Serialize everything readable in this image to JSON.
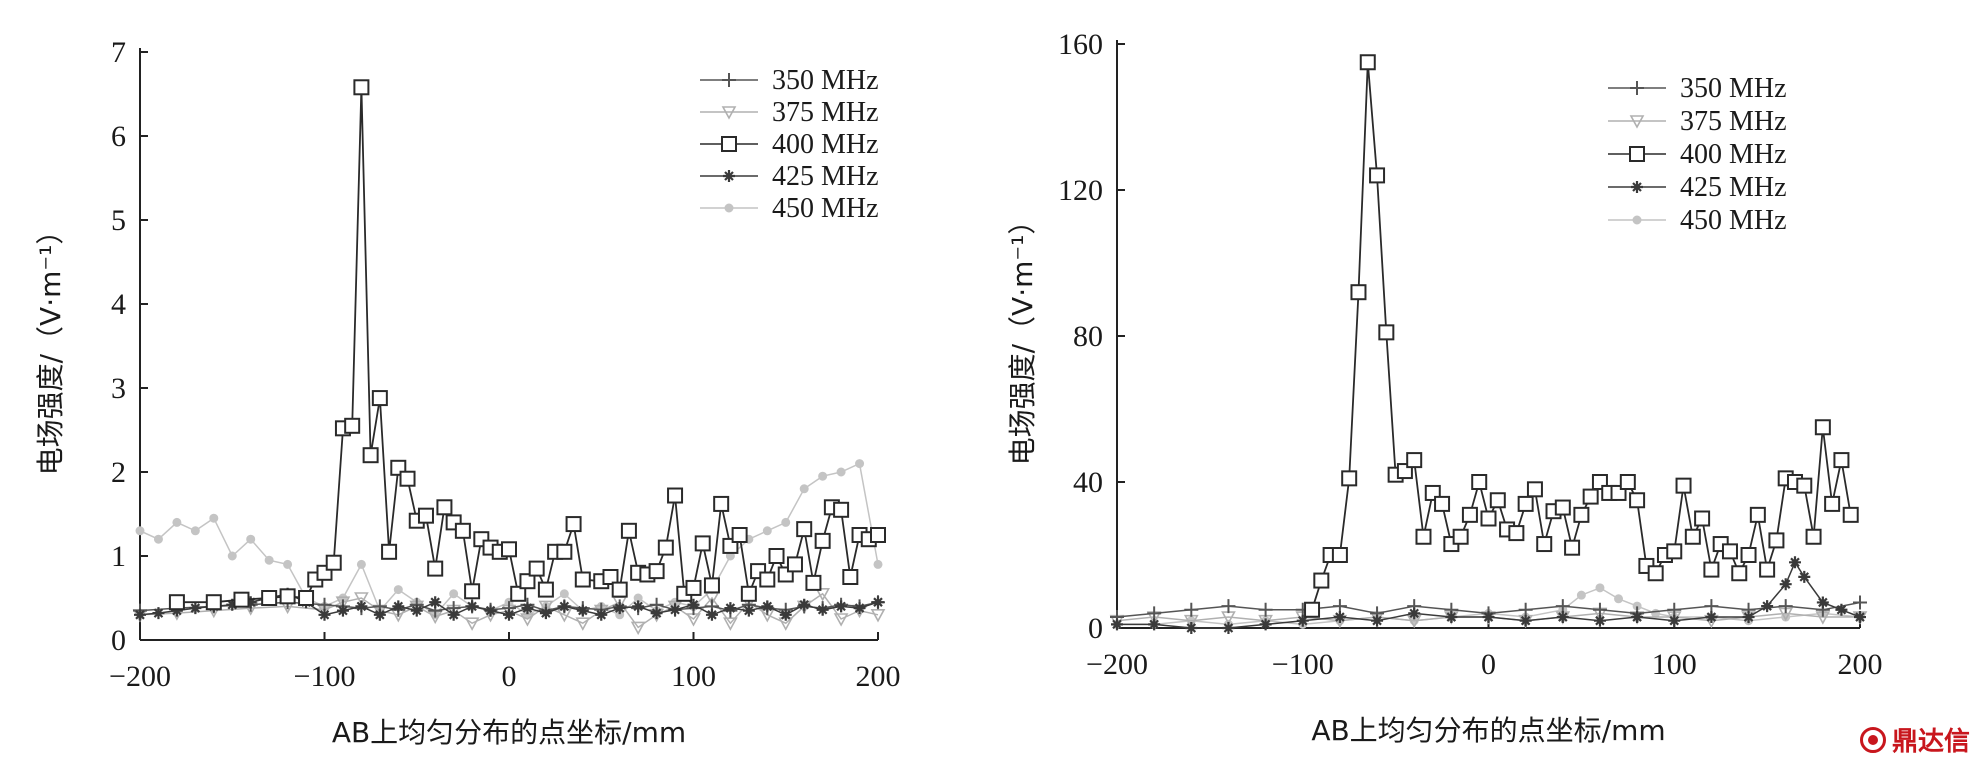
{
  "chart_data": [
    {
      "type": "line",
      "xlabel": "AB上均匀分布的点坐标/mm",
      "ylabel": "电场强度/（V·m⁻¹）",
      "xlim": [
        -200,
        200
      ],
      "ylim": [
        0,
        7
      ],
      "xticks": [
        -200,
        -100,
        0,
        100,
        200
      ],
      "yticks": [
        0,
        1,
        2,
        3,
        4,
        5,
        6,
        7
      ],
      "grid": false,
      "legend_position": "top-right",
      "series": [
        {
          "name": "350 MHz",
          "marker": "plus",
          "color": "#555555",
          "x": [
            -200,
            -180,
            -160,
            -140,
            -120,
            -100,
            -90,
            -80,
            -70,
            -60,
            -50,
            -40,
            -30,
            -20,
            -10,
            0,
            10,
            20,
            30,
            40,
            50,
            60,
            70,
            80,
            90,
            100,
            110,
            120,
            130,
            140,
            150,
            160,
            170,
            180,
            190,
            200
          ],
          "y": [
            0.35,
            0.38,
            0.4,
            0.42,
            0.45,
            0.42,
            0.4,
            0.38,
            0.4,
            0.36,
            0.42,
            0.35,
            0.38,
            0.4,
            0.36,
            0.38,
            0.42,
            0.35,
            0.4,
            0.38,
            0.36,
            0.4,
            0.38,
            0.42,
            0.36,
            0.38,
            0.4,
            0.35,
            0.42,
            0.38,
            0.36,
            0.4,
            0.38,
            0.42,
            0.4,
            0.45
          ]
        },
        {
          "name": "375 MHz",
          "marker": "triangle-down",
          "color": "#b0b0b0",
          "x": [
            -200,
            -180,
            -160,
            -140,
            -120,
            -100,
            -90,
            -80,
            -70,
            -60,
            -50,
            -40,
            -30,
            -20,
            -10,
            0,
            10,
            20,
            30,
            40,
            50,
            60,
            70,
            80,
            90,
            100,
            110,
            120,
            130,
            140,
            150,
            160,
            170,
            180,
            190,
            200
          ],
          "y": [
            0.3,
            0.32,
            0.35,
            0.38,
            0.4,
            0.36,
            0.45,
            0.5,
            0.35,
            0.3,
            0.4,
            0.28,
            0.35,
            0.2,
            0.3,
            0.35,
            0.25,
            0.4,
            0.3,
            0.2,
            0.35,
            0.45,
            0.15,
            0.3,
            0.4,
            0.25,
            0.5,
            0.2,
            0.45,
            0.3,
            0.2,
            0.4,
            0.55,
            0.25,
            0.35,
            0.3
          ]
        },
        {
          "name": "400 MHz",
          "marker": "square",
          "color": "#2a2a2a",
          "x": [
            -180,
            -160,
            -145,
            -130,
            -120,
            -110,
            -105,
            -100,
            -95,
            -90,
            -85,
            -80,
            -75,
            -70,
            -65,
            -60,
            -55,
            -50,
            -45,
            -40,
            -35,
            -30,
            -25,
            -20,
            -15,
            -10,
            -5,
            0,
            5,
            10,
            15,
            20,
            25,
            30,
            35,
            40,
            50,
            55,
            60,
            65,
            70,
            75,
            80,
            85,
            90,
            95,
            100,
            105,
            110,
            115,
            120,
            125,
            130,
            135,
            140,
            145,
            150,
            155,
            160,
            165,
            170,
            175,
            180,
            185,
            190,
            195,
            200
          ],
          "y": [
            0.45,
            0.45,
            0.48,
            0.5,
            0.52,
            0.5,
            0.72,
            0.8,
            0.92,
            2.52,
            2.55,
            6.58,
            2.2,
            2.88,
            1.05,
            2.05,
            1.92,
            1.42,
            1.48,
            0.85,
            1.58,
            1.4,
            1.3,
            0.58,
            1.2,
            1.1,
            1.05,
            1.08,
            0.55,
            0.7,
            0.85,
            0.6,
            1.05,
            1.05,
            1.38,
            0.72,
            0.7,
            0.75,
            0.6,
            1.3,
            0.8,
            0.78,
            0.82,
            1.1,
            1.72,
            0.55,
            0.62,
            1.15,
            0.65,
            1.62,
            1.12,
            1.25,
            0.55,
            0.82,
            0.72,
            1.0,
            0.78,
            0.9,
            1.32,
            0.68,
            1.18,
            1.58,
            1.55,
            0.75,
            1.25,
            1.2,
            1.25
          ]
        },
        {
          "name": "425 MHz",
          "marker": "star",
          "color": "#3a3a3a",
          "x": [
            -200,
            -190,
            -180,
            -170,
            -160,
            -150,
            -140,
            -130,
            -120,
            -110,
            -100,
            -90,
            -80,
            -70,
            -60,
            -50,
            -40,
            -30,
            -20,
            -10,
            0,
            10,
            20,
            30,
            40,
            50,
            60,
            70,
            80,
            90,
            100,
            110,
            120,
            130,
            140,
            150,
            160,
            170,
            180,
            190,
            200
          ],
          "y": [
            0.3,
            0.32,
            0.35,
            0.38,
            0.4,
            0.42,
            0.45,
            0.5,
            0.55,
            0.45,
            0.3,
            0.35,
            0.4,
            0.3,
            0.4,
            0.35,
            0.45,
            0.3,
            0.4,
            0.35,
            0.3,
            0.38,
            0.32,
            0.4,
            0.35,
            0.3,
            0.38,
            0.4,
            0.32,
            0.36,
            0.42,
            0.3,
            0.38,
            0.35,
            0.4,
            0.3,
            0.42,
            0.36,
            0.4,
            0.38,
            0.45
          ]
        },
        {
          "name": "450 MHz",
          "marker": "circle",
          "color": "#c4c4c4",
          "x": [
            -200,
            -190,
            -180,
            -170,
            -160,
            -150,
            -140,
            -130,
            -120,
            -110,
            -100,
            -90,
            -80,
            -70,
            -60,
            -50,
            -40,
            -30,
            -20,
            -10,
            0,
            10,
            20,
            30,
            40,
            50,
            60,
            70,
            80,
            90,
            100,
            110,
            120,
            130,
            140,
            150,
            160,
            170,
            180,
            190,
            200
          ],
          "y": [
            1.3,
            1.2,
            1.4,
            1.3,
            1.45,
            1.0,
            1.2,
            0.95,
            0.9,
            0.5,
            0.4,
            0.5,
            0.9,
            0.35,
            0.6,
            0.45,
            0.3,
            0.55,
            0.4,
            0.35,
            0.45,
            0.3,
            0.4,
            0.55,
            0.35,
            0.4,
            0.3,
            0.5,
            0.35,
            0.45,
            0.4,
            0.6,
            1.0,
            1.2,
            1.3,
            1.4,
            1.8,
            1.95,
            2.0,
            2.1,
            0.9
          ]
        }
      ]
    },
    {
      "type": "line",
      "xlabel": "AB上均匀分布的点坐标/mm",
      "ylabel": "电场强度/（V·m⁻¹）",
      "xlim": [
        -200,
        200
      ],
      "ylim": [
        0,
        160
      ],
      "xticks": [
        -200,
        -100,
        0,
        100,
        200
      ],
      "yticks": [
        0,
        40,
        80,
        120,
        160
      ],
      "grid": false,
      "legend_position": "top-right",
      "series": [
        {
          "name": "350 MHz",
          "marker": "plus",
          "color": "#555555",
          "x": [
            -200,
            -180,
            -160,
            -140,
            -120,
            -100,
            -80,
            -60,
            -40,
            -20,
            0,
            20,
            40,
            60,
            80,
            100,
            120,
            140,
            160,
            180,
            200
          ],
          "y": [
            3,
            4,
            5,
            6,
            5,
            5,
            6,
            4,
            6,
            5,
            4,
            5,
            6,
            5,
            4,
            5,
            6,
            5,
            6,
            5,
            7
          ]
        },
        {
          "name": "375 MHz",
          "marker": "triangle-down",
          "color": "#b0b0b0",
          "x": [
            -200,
            -180,
            -160,
            -140,
            -120,
            -100,
            -80,
            -60,
            -40,
            -20,
            0,
            20,
            40,
            60,
            80,
            100,
            120,
            140,
            160,
            180,
            200
          ],
          "y": [
            2,
            3,
            2,
            3,
            2,
            3,
            2,
            3,
            2,
            3,
            3,
            2,
            3,
            4,
            3,
            3,
            2,
            3,
            4,
            3,
            3
          ]
        },
        {
          "name": "400 MHz",
          "marker": "square",
          "color": "#2a2a2a",
          "x": [
            -95,
            -90,
            -85,
            -80,
            -75,
            -70,
            -65,
            -60,
            -55,
            -50,
            -45,
            -40,
            -35,
            -30,
            -25,
            -20,
            -15,
            -10,
            -5,
            0,
            5,
            10,
            15,
            20,
            25,
            30,
            35,
            40,
            45,
            50,
            55,
            60,
            65,
            70,
            75,
            80,
            85,
            90,
            95,
            100,
            105,
            110,
            115,
            120,
            125,
            130,
            135,
            140,
            145,
            150,
            155,
            160,
            165,
            170,
            175,
            180,
            185,
            190,
            195
          ],
          "y": [
            5,
            13,
            20,
            20,
            41,
            92,
            155,
            124,
            81,
            42,
            43,
            46,
            25,
            37,
            34,
            23,
            25,
            31,
            40,
            30,
            35,
            27,
            26,
            34,
            38,
            23,
            32,
            33,
            22,
            31,
            36,
            40,
            37,
            37,
            40,
            35,
            17,
            15,
            20,
            21,
            39,
            25,
            30,
            16,
            23,
            21,
            15,
            20,
            31,
            16,
            24,
            41,
            40,
            39,
            25,
            55,
            34,
            46,
            31
          ]
        },
        {
          "name": "425 MHz",
          "marker": "star",
          "color": "#3a3a3a",
          "x": [
            -200,
            -180,
            -160,
            -140,
            -120,
            -100,
            -80,
            -60,
            -40,
            -20,
            0,
            20,
            40,
            60,
            80,
            100,
            120,
            140,
            150,
            160,
            165,
            170,
            180,
            190,
            200
          ],
          "y": [
            1,
            1,
            0,
            0,
            1,
            2,
            3,
            2,
            4,
            3,
            3,
            2,
            3,
            2,
            3,
            2,
            3,
            3,
            6,
            12,
            18,
            14,
            7,
            5,
            3
          ]
        },
        {
          "name": "450 MHz",
          "marker": "circle",
          "color": "#c4c4c4",
          "x": [
            -200,
            -180,
            -160,
            -140,
            -120,
            -100,
            -80,
            -60,
            -40,
            -20,
            0,
            20,
            40,
            50,
            60,
            70,
            80,
            90,
            100,
            120,
            140,
            160,
            180,
            200
          ],
          "y": [
            1,
            1,
            2,
            1,
            2,
            1,
            2,
            3,
            2,
            3,
            4,
            3,
            5,
            9,
            11,
            8,
            6,
            4,
            3,
            3,
            2,
            3,
            4,
            3
          ]
        }
      ]
    }
  ],
  "watermark": {
    "text": "鼎达信",
    "color": "#c8161d"
  }
}
